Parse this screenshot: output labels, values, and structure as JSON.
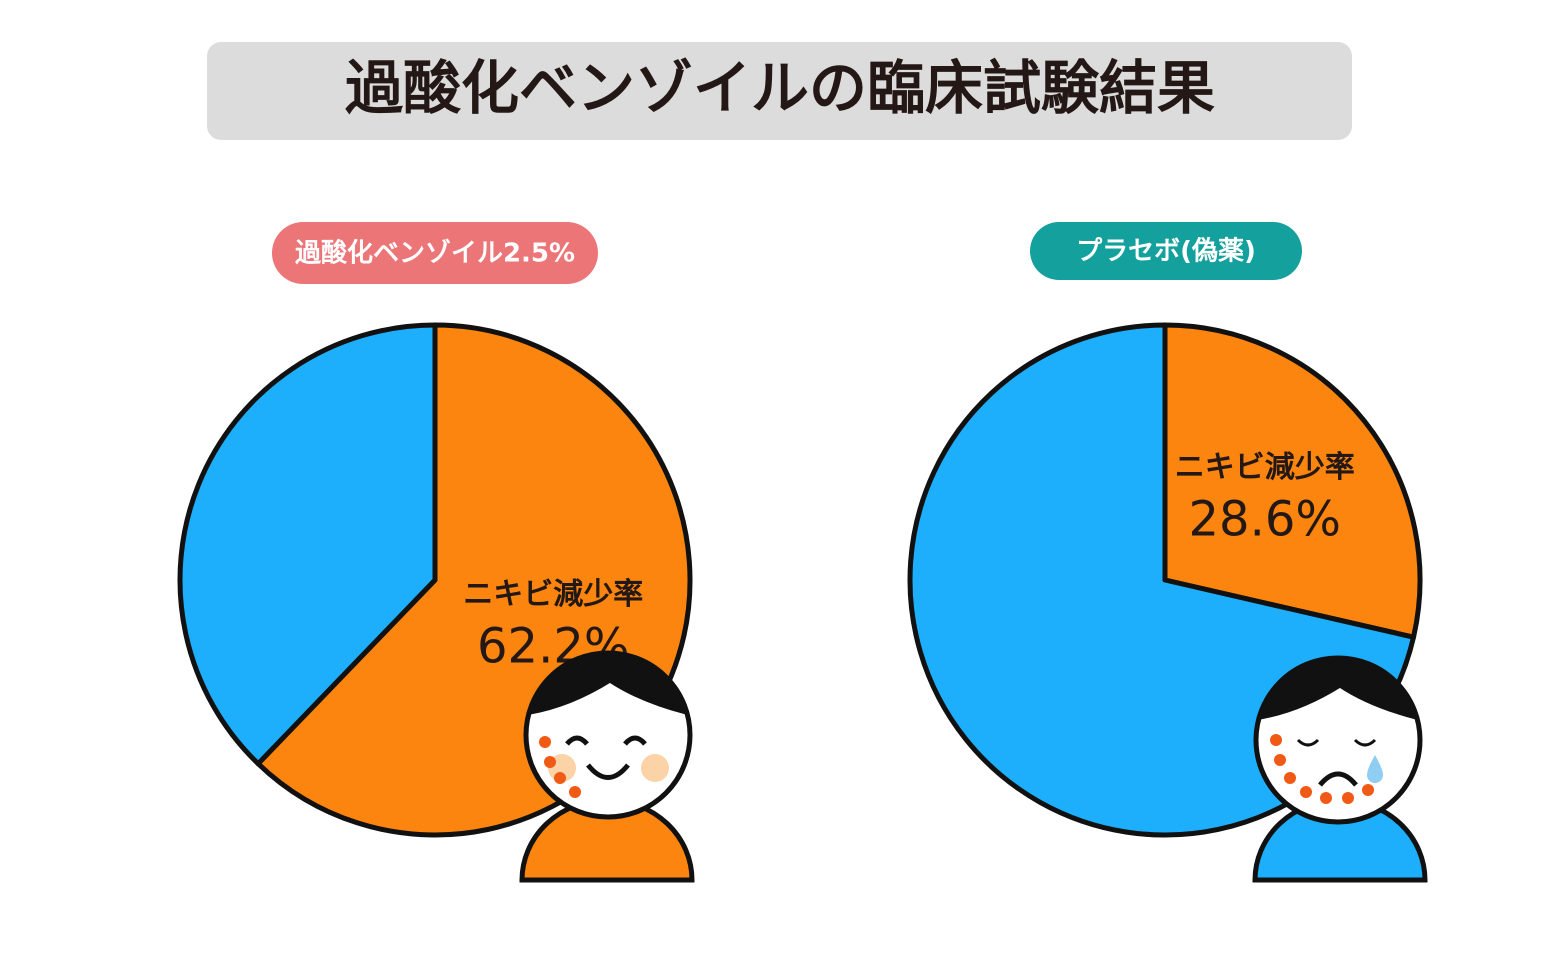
{
  "title": "過酸化ベンゾイルの臨床試験結果",
  "chart_data": [
    {
      "type": "pie",
      "title": "過酸化ベンゾイル2.5%",
      "categories": [
        "ニキビ減少率",
        null
      ],
      "values": [
        62.2,
        37.8
      ],
      "value_labels": [
        "62.2%",
        null
      ],
      "colors": [
        "#fb850f",
        "#1daffc"
      ]
    },
    {
      "type": "pie",
      "title": "プラセボ(偽薬)",
      "categories": [
        "ニキビ減少率",
        null
      ],
      "values": [
        28.6,
        71.4
      ],
      "value_labels": [
        "28.6%",
        null
      ],
      "colors": [
        "#fb850f",
        "#1daffc"
      ]
    }
  ]
}
